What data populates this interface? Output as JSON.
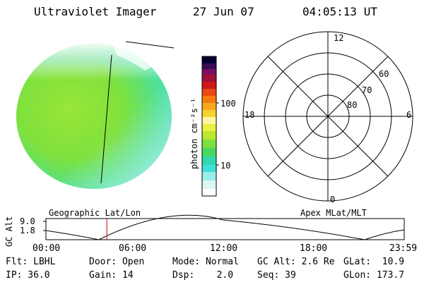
{
  "header": {
    "instrument": "Ultraviolet Imager",
    "date": "27 Jun 07",
    "time": "04:05:13 UT"
  },
  "colorbar": {
    "label": "photon cm⁻²s⁻¹",
    "ticks": [
      "100",
      "10"
    ]
  },
  "polar_plot": {
    "mlt_labels": {
      "top": "12",
      "left": "18",
      "right": "6",
      "bottom": "0"
    },
    "lat_labels": [
      "60",
      "70",
      "80"
    ]
  },
  "timeline": {
    "left_title": "Geographic Lat/Lon",
    "right_title": "Apex MLat/MLT",
    "y_axis_label": "GC Alt",
    "y_ticks": [
      "9.0",
      "1.8"
    ],
    "x_ticks": [
      "00:00",
      "06:00",
      "12:00",
      "18:00",
      "23:59"
    ],
    "current_time_fraction": 0.17
  },
  "status": {
    "flt": "Flt: LBHL",
    "ip": "IP: 36.0",
    "door": "Door: Open",
    "gain": "Gain: 14",
    "mode": "Mode: Normal",
    "dsp": "Dsp:    2.0",
    "gc_alt": "GC Alt: 2.6 Re",
    "seq": "Seq: 39",
    "glat": "GLat:  10.9",
    "glon": "GLon: 173.7"
  },
  "colors": {
    "disk_green": "#7fe13a",
    "disk_cyan": "#3fe0d0",
    "cursor": "#cc0000"
  }
}
